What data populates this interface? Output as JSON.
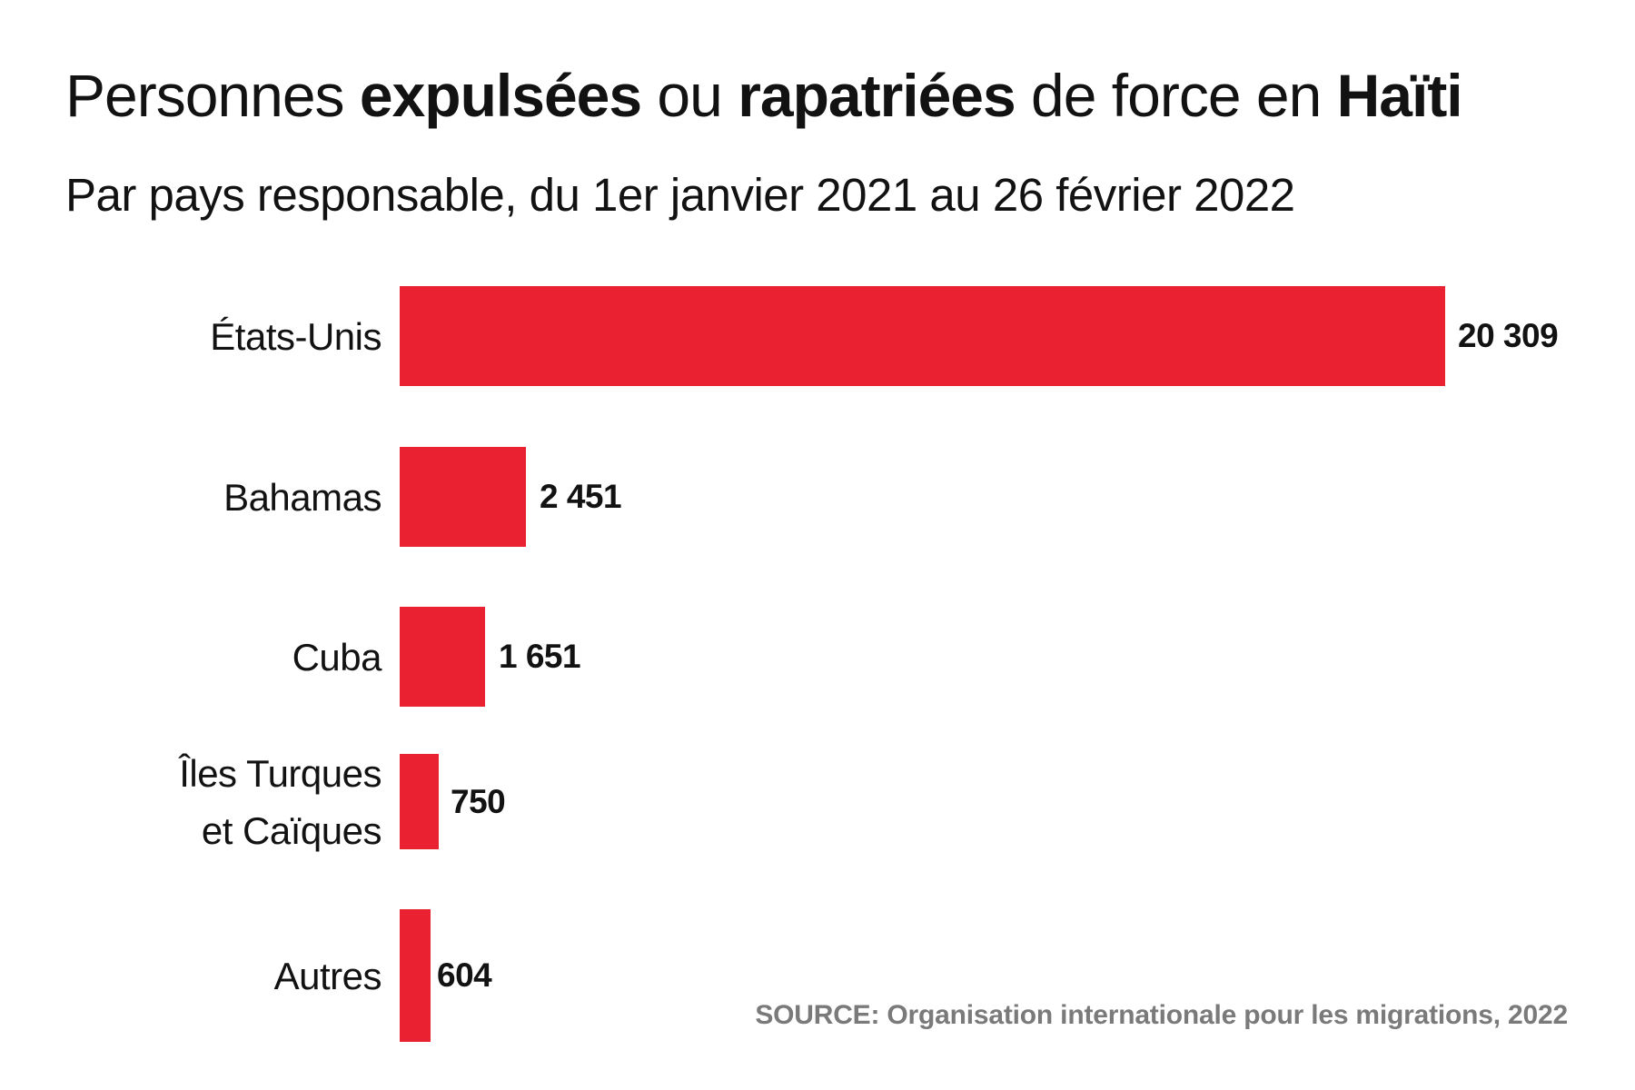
{
  "header": {
    "title_segments": [
      {
        "text": "Personnes ",
        "bold": false
      },
      {
        "text": "expulsées",
        "bold": true
      },
      {
        "text": " ou ",
        "bold": false
      },
      {
        "text": "rapatriées",
        "bold": true
      },
      {
        "text": " de force en ",
        "bold": false
      },
      {
        "text": "Haïti",
        "bold": true
      }
    ],
    "title_plain": "Personnes expulsées ou rapatriées de force en Haïti",
    "subtitle": "Par pays responsable, du 1er janvier 2021 au 26 février 2022"
  },
  "chart_data": {
    "type": "bar",
    "orientation": "horizontal",
    "title": "Personnes expulsées ou rapatriées de force en Haïti",
    "subtitle": "Par pays responsable, du 1er janvier 2021 au 26 février 2022",
    "categories": [
      "États-Unis",
      "Bahamas",
      "Cuba",
      "Îles Turques et Caïques",
      "Autres"
    ],
    "category_label_lines": [
      [
        "États-Unis"
      ],
      [
        "Bahamas"
      ],
      [
        "Cuba"
      ],
      [
        "Îles Turques",
        "et Caïques"
      ],
      [
        "Autres"
      ]
    ],
    "values": [
      20309,
      2451,
      1651,
      750,
      604
    ],
    "value_labels": [
      "20 309",
      "2 451",
      "1 651",
      "750",
      "604"
    ],
    "xlim": [
      0,
      20309
    ],
    "grid": false,
    "legend": "none",
    "bar_color": "#ea2130"
  },
  "footer": {
    "source": "SOURCE: Organisation internationale pour les migrations, 2022"
  },
  "colors": {
    "bar_red": "#ea2130",
    "text_black": "#121212",
    "source_gray": "#7a7a7a",
    "background": "#ffffff"
  }
}
